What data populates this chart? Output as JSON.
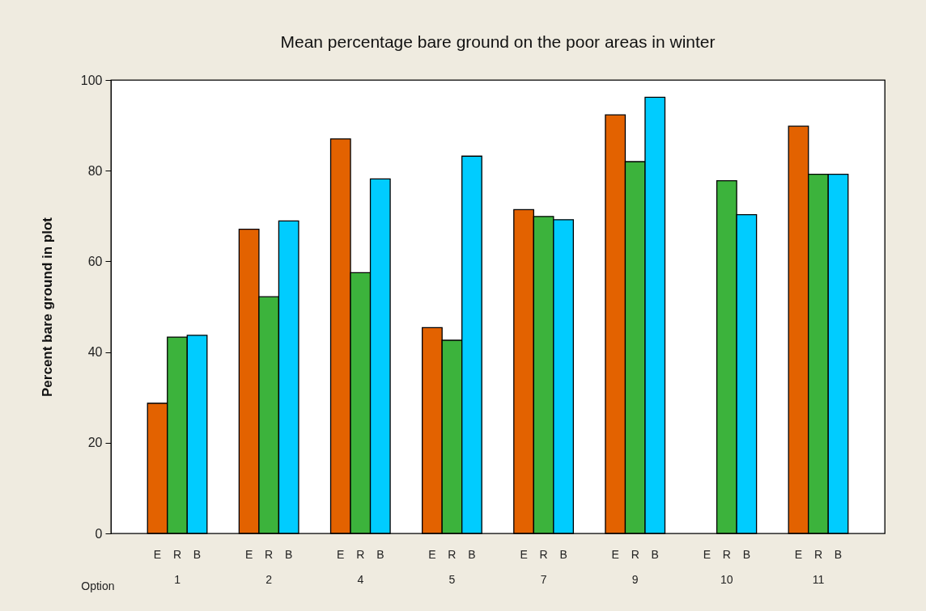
{
  "chart_data": {
    "type": "bar",
    "title": "Mean percentage bare ground on the poor areas in winter",
    "xlabel": "Option",
    "ylabel": "Percent bare ground in plot",
    "categories": [
      "1",
      "2",
      "4",
      "5",
      "7",
      "9",
      "10",
      "11"
    ],
    "series": [
      {
        "name": "E",
        "color": "#e36200",
        "values": [
          28.7,
          67.1,
          87.0,
          45.4,
          71.4,
          92.3,
          null,
          89.8
        ]
      },
      {
        "name": "R",
        "color": "#3cb33c",
        "values": [
          43.3,
          52.2,
          57.5,
          42.6,
          69.9,
          82.0,
          77.8,
          79.2
        ]
      },
      {
        "name": "B",
        "color": "#00ccff",
        "values": [
          43.7,
          68.9,
          78.2,
          83.2,
          69.2,
          96.2,
          70.3,
          79.2
        ]
      }
    ],
    "ylim": [
      0,
      100
    ],
    "yticks": [
      0,
      20,
      40,
      60,
      80,
      100
    ],
    "grid": false,
    "legend": false
  }
}
